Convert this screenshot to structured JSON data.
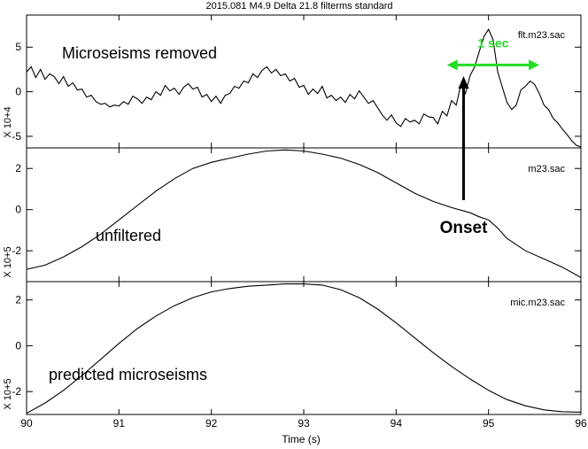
{
  "chart_data": {
    "title": "2015.081 M4.9 Delta 21.8 filterms standard",
    "xlabel": "Time (s)",
    "xlim": [
      90,
      96
    ],
    "x_ticks": [
      "90",
      "91",
      "92",
      "93",
      "94",
      "95",
      "96"
    ],
    "panels": [
      {
        "type": "line",
        "name": "flt.m23.sac",
        "annotation": "Microseisms removed",
        "ylabel_scale": "X 10+4",
        "ylim": [
          -6.3,
          8.6
        ],
        "y_ticks": [
          "5",
          "0",
          "-5"
        ],
        "x": [
          90.0,
          90.05,
          90.1,
          90.15,
          90.2,
          90.25,
          90.3,
          90.35,
          90.4,
          90.45,
          90.5,
          90.55,
          90.6,
          90.65,
          90.7,
          90.75,
          90.8,
          90.85,
          90.9,
          90.95,
          91.0,
          91.05,
          91.1,
          91.15,
          91.2,
          91.25,
          91.3,
          91.35,
          91.4,
          91.45,
          91.5,
          91.55,
          91.6,
          91.65,
          91.7,
          91.75,
          91.8,
          91.85,
          91.9,
          91.95,
          92.0,
          92.05,
          92.1,
          92.15,
          92.2,
          92.25,
          92.3,
          92.35,
          92.4,
          92.45,
          92.5,
          92.55,
          92.6,
          92.65,
          92.7,
          92.75,
          92.8,
          92.85,
          92.9,
          92.95,
          93.0,
          93.05,
          93.1,
          93.15,
          93.2,
          93.25,
          93.3,
          93.35,
          93.4,
          93.45,
          93.5,
          93.55,
          93.6,
          93.65,
          93.7,
          93.75,
          93.8,
          93.85,
          93.9,
          93.95,
          94.0,
          94.05,
          94.1,
          94.15,
          94.2,
          94.25,
          94.3,
          94.35,
          94.4,
          94.45,
          94.5,
          94.55,
          94.6,
          94.65,
          94.7,
          94.75,
          94.8,
          94.85,
          94.9,
          94.95,
          95.0,
          95.05,
          95.1,
          95.15,
          95.2,
          95.25,
          95.3,
          95.35,
          95.4,
          95.45,
          95.5,
          95.55,
          95.6,
          95.65,
          95.7,
          95.75,
          95.8,
          95.85,
          95.9,
          95.95,
          96.0
        ],
        "values": [
          2.2,
          2.8,
          1.6,
          2.5,
          1.4,
          2.0,
          1.7,
          0.9,
          1.7,
          0.6,
          1.0,
          0.2,
          0.3,
          -0.6,
          -0.4,
          -1.1,
          -1.4,
          -1.3,
          -1.7,
          -1.5,
          -1.6,
          -1.1,
          -1.4,
          -0.5,
          -0.8,
          -1.3,
          -0.6,
          -0.9,
          0.0,
          -0.4,
          0.7,
          0.1,
          0.4,
          -0.3,
          0.5,
          0.9,
          0.3,
          0.5,
          -0.6,
          -0.3,
          -1.1,
          -0.5,
          -1.3,
          -0.4,
          -0.2,
          0.6,
          0.4,
          1.2,
          1.0,
          2.0,
          1.6,
          2.4,
          2.8,
          2.1,
          2.5,
          1.8,
          2.0,
          1.2,
          1.5,
          0.5,
          0.7,
          -0.3,
          0.3,
          -0.2,
          0.6,
          -0.7,
          -0.4,
          -1.0,
          -0.6,
          -1.2,
          -0.3,
          -0.8,
          0.1,
          -0.6,
          -1.3,
          -1.0,
          -1.8,
          -2.6,
          -3.2,
          -2.6,
          -3.5,
          -3.9,
          -3.0,
          -3.4,
          -3.2,
          -3.6,
          -2.5,
          -2.8,
          -2.9,
          -3.6,
          -2.2,
          -2.7,
          -1.0,
          -1.5,
          0.8,
          -0.2,
          1.8,
          2.8,
          4.5,
          6.2,
          7.0,
          5.8,
          2.2,
          0.5,
          -1.2,
          -2.0,
          -1.5,
          0.2,
          0.6,
          1.2,
          0.8,
          -0.2,
          -1.5,
          -2.0,
          -3.0,
          -3.5,
          -4.2,
          -4.8,
          -5.5,
          -6.0,
          -6.2
        ]
      },
      {
        "type": "line",
        "name": "m23.sac",
        "annotation": "unfiltered",
        "ylabel_scale": "X 10+5",
        "ylim": [
          -3.5,
          3.0
        ],
        "y_ticks": [
          "2",
          "0",
          "-2"
        ],
        "x": [
          90.0,
          90.2,
          90.4,
          90.6,
          90.8,
          91.0,
          91.2,
          91.4,
          91.6,
          91.8,
          92.0,
          92.2,
          92.4,
          92.6,
          92.8,
          93.0,
          93.2,
          93.4,
          93.6,
          93.8,
          94.0,
          94.2,
          94.4,
          94.6,
          94.8,
          94.9,
          95.0,
          95.1,
          95.2,
          95.4,
          95.6,
          95.8,
          96.0
        ],
        "values": [
          -2.9,
          -2.7,
          -2.3,
          -1.8,
          -1.2,
          -0.5,
          0.2,
          0.9,
          1.5,
          2.0,
          2.3,
          2.5,
          2.7,
          2.85,
          2.9,
          2.85,
          2.7,
          2.5,
          2.2,
          1.8,
          1.3,
          0.8,
          0.4,
          0.1,
          -0.15,
          -0.35,
          -0.5,
          -0.9,
          -1.4,
          -2.0,
          -2.4,
          -2.8,
          -3.3
        ]
      },
      {
        "type": "line",
        "name": "mic.m23.sac",
        "annotation": "predicted microseisms",
        "ylabel_scale": "X 10+5",
        "ylim": [
          -3.0,
          2.8
        ],
        "y_ticks": [
          "2",
          "0",
          "-2"
        ],
        "x": [
          90.0,
          90.2,
          90.4,
          90.6,
          90.8,
          91.0,
          91.2,
          91.4,
          91.6,
          91.8,
          92.0,
          92.2,
          92.4,
          92.6,
          92.8,
          93.0,
          93.2,
          93.4,
          93.6,
          93.8,
          94.0,
          94.2,
          94.4,
          94.6,
          94.8,
          95.0,
          95.2,
          95.4,
          95.6,
          95.8,
          96.0
        ],
        "values": [
          -2.95,
          -2.5,
          -1.95,
          -1.3,
          -0.6,
          0.1,
          0.75,
          1.3,
          1.75,
          2.1,
          2.35,
          2.5,
          2.6,
          2.65,
          2.7,
          2.7,
          2.65,
          2.45,
          2.1,
          1.6,
          1.0,
          0.35,
          -0.3,
          -0.9,
          -1.45,
          -1.95,
          -2.35,
          -2.62,
          -2.8,
          -2.88,
          -2.9
        ]
      }
    ],
    "annotations": {
      "interval_label": "1 sec",
      "interval_from_x": 94.55,
      "interval_to_x": 95.55,
      "interval_y": 3.0,
      "interval_color": "#22dd22",
      "onset_label": "Onset",
      "onset_x": 94.73
    }
  }
}
